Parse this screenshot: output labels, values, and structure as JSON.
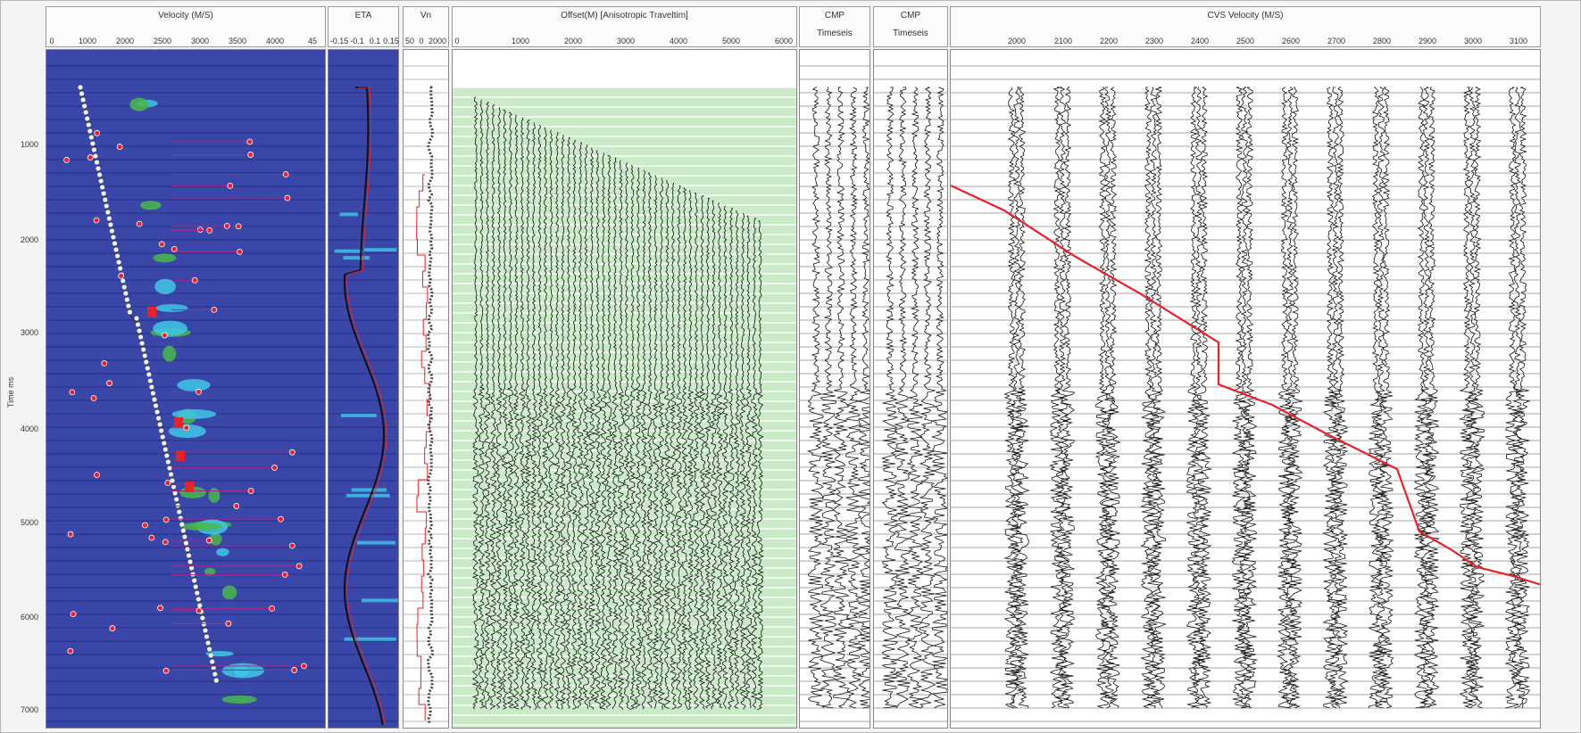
{
  "panels": {
    "velocity": {
      "title": "Velocity (M/S)",
      "ticks": [
        "0",
        "1000",
        "2000",
        "2500",
        "3000",
        "3500",
        "4000",
        "45"
      ]
    },
    "eta": {
      "title": "ETA",
      "ticks": [
        "-0.15",
        "-0.1",
        "0.1",
        "0.15"
      ]
    },
    "vn": {
      "title": "Vn",
      "ticks": [
        "50",
        "0",
        "2000"
      ]
    },
    "offset": {
      "title": "Offset(M) [Anisotropic Traveltim]",
      "ticks": [
        "0",
        "1000",
        "2000",
        "3000",
        "4000",
        "5000",
        "6000"
      ]
    },
    "cmp1": {
      "title": "CMP",
      "sub": "Timeseis"
    },
    "cmp2": {
      "title": "CMP",
      "sub": "Timeseis"
    },
    "cvs": {
      "title": "CVS Velocity (M/S)",
      "ticks": [
        "2000",
        "2100",
        "2200",
        "2300",
        "2400",
        "2500",
        "2600",
        "2700",
        "2800",
        "2900",
        "3000",
        "3100"
      ]
    }
  },
  "y_axis": {
    "label": "Time ms",
    "ticks": [
      "1000",
      "2000",
      "3000",
      "4000",
      "5000",
      "6000",
      "7000"
    ]
  },
  "colors": {
    "velocity_bg": "#3a47a8",
    "semblance_cyan": "#3fc7e6",
    "semblance_green": "#49b94a",
    "pick_red": "#e8212a",
    "pick_white": "#f1f1dc",
    "offset_green": "#9fd99a",
    "trace_black": "#111111"
  }
}
